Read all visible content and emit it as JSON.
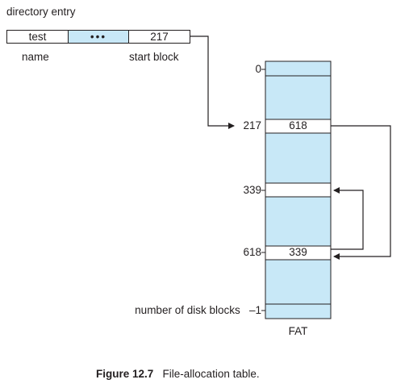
{
  "directory": {
    "title": "directory entry",
    "name_value": "test",
    "ellipsis": "•••",
    "start_value": "217",
    "name_label": "name",
    "start_label": "start block"
  },
  "fat": {
    "index_0": "0",
    "index_217": "217",
    "index_339": "339",
    "index_618": "618",
    "index_last": "number of disk blocks   –1",
    "entry_217": "618",
    "entry_618": "339",
    "label": "FAT"
  },
  "caption": {
    "number": "Figure 12.7",
    "text": "File-allocation table."
  },
  "colors": {
    "fill": "#c8e8f7",
    "ink": "#231f20"
  }
}
